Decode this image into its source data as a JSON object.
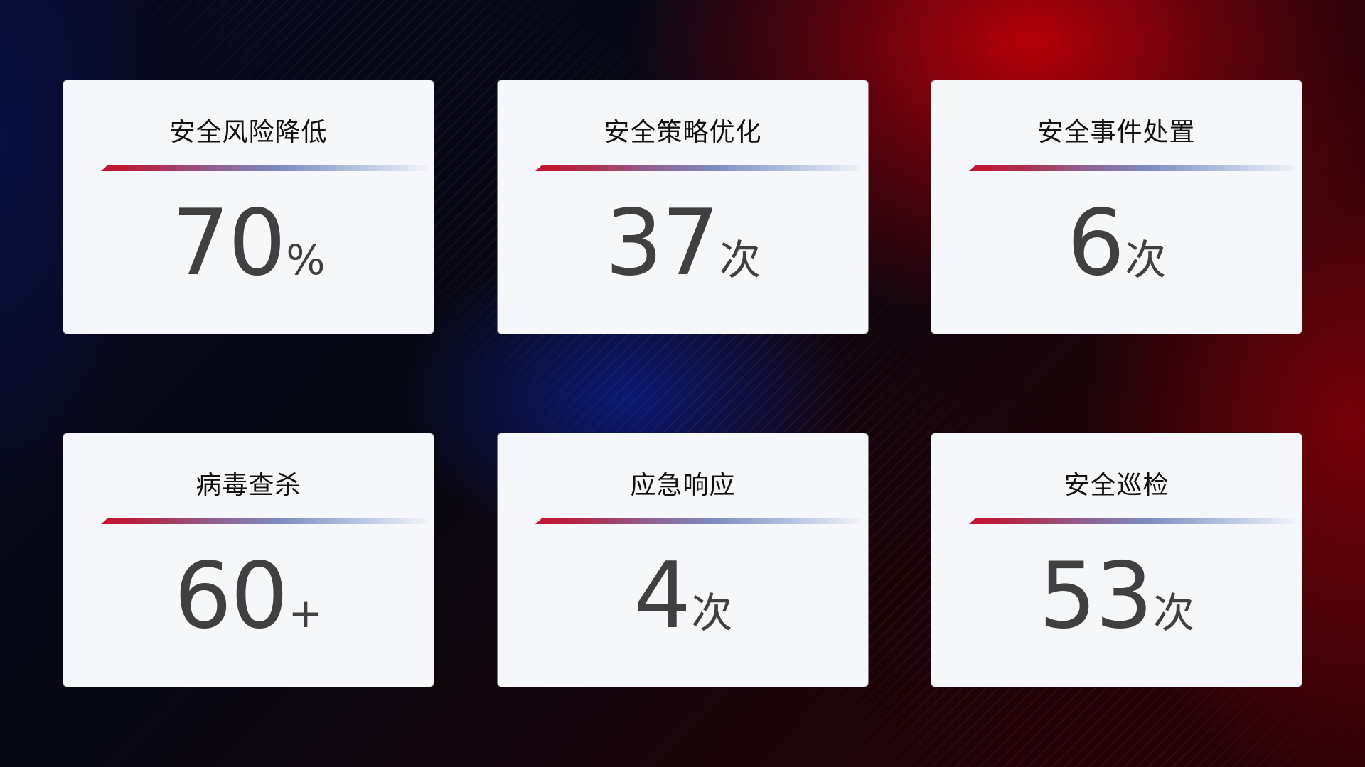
{
  "cards": [
    {
      "title": "安全风险降低",
      "value": "70",
      "unit": "%"
    },
    {
      "title": "安全策略优化",
      "value": "37",
      "unit": "次"
    },
    {
      "title": "安全事件处置",
      "value": "6",
      "unit": "次"
    },
    {
      "title": "病毒查杀",
      "value": "60",
      "unit": "+"
    },
    {
      "title": "应急响应",
      "value": "4",
      "unit": "次"
    },
    {
      "title": "安全巡检",
      "value": "53",
      "unit": "次"
    }
  ],
  "colors": {
    "accent_red": "#c8102e",
    "accent_blue": "#7d8cc0",
    "card_bg": "#f5f7fb",
    "value_text": "#404040"
  }
}
